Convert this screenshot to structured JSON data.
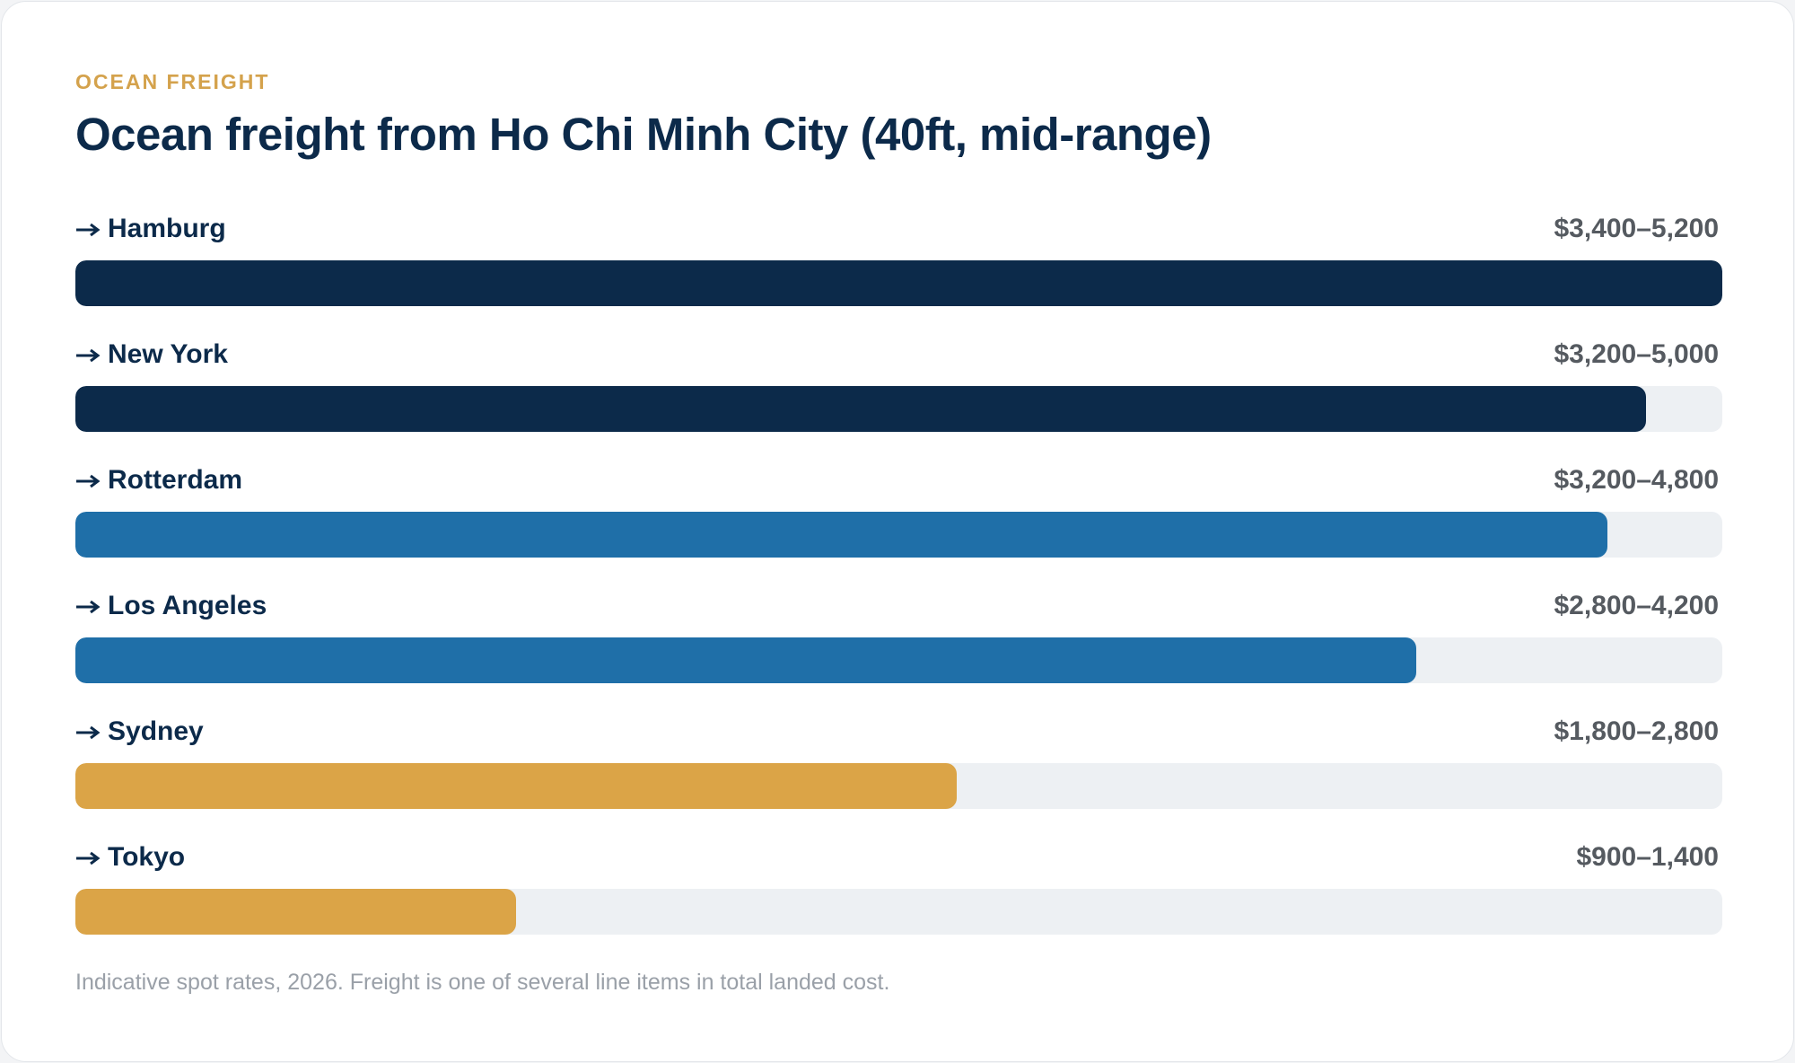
{
  "chart_data": {
    "type": "range-bar",
    "kicker": "OCEAN FREIGHT",
    "title": "Ocean freight from Ho Chi Minh City (40ft, mid-range)",
    "categories": [
      "Hamburg",
      "New York",
      "Rotterdam",
      "Los Angeles",
      "Sydney",
      "Tokyo"
    ],
    "low": [
      3400,
      3200,
      3200,
      2800,
      1800,
      900
    ],
    "high": [
      5200,
      5000,
      4800,
      4200,
      2800,
      1400
    ],
    "value_labels": [
      "$3,400–5,200",
      "$3,200–5,000",
      "$3,200–4,800",
      "$2,800–4,200",
      "$1,800–2,800",
      "$900–1,400"
    ],
    "colors": [
      "#0c2a4a",
      "#0c2a4a",
      "#1f6fa8",
      "#1f6fa8",
      "#dba447",
      "#dba447"
    ],
    "note": "Indicative spot rates, 2026. Freight is one of several line items in total landed cost."
  }
}
